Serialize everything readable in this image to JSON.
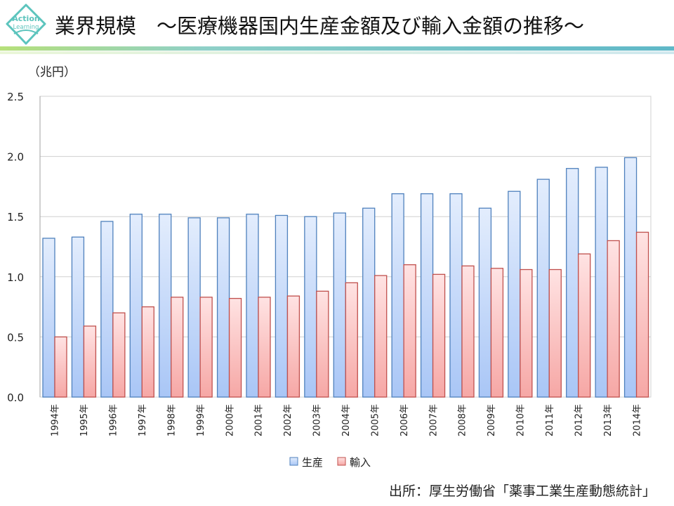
{
  "header": {
    "logo_text": [
      "Action",
      "Learning"
    ],
    "title": "業界規模　～医療機器国内生産金額及び輸入金額の推移～"
  },
  "colors": {
    "production": "#4f81bd",
    "import": "#c0504d",
    "accent": "#5fb8c8"
  },
  "chart_data": {
    "type": "bar",
    "title": "",
    "ylabel": "（兆円）",
    "xlabel": "",
    "ylim": [
      0,
      2.5
    ],
    "yticks": [
      "0.0",
      "0.5",
      "1.0",
      "1.5",
      "2.0",
      "2.5"
    ],
    "grid": true,
    "legend": "bottom",
    "categories": [
      "1994年",
      "1995年",
      "1996年",
      "1997年",
      "1998年",
      "1999年",
      "2000年",
      "2001年",
      "2002年",
      "2003年",
      "2004年",
      "2005年",
      "2006年",
      "2007年",
      "2008年",
      "2009年",
      "2010年",
      "2011年",
      "2012年",
      "2013年",
      "2014年"
    ],
    "series": [
      {
        "name": "生産",
        "values": [
          1.32,
          1.33,
          1.46,
          1.52,
          1.52,
          1.49,
          1.49,
          1.52,
          1.51,
          1.5,
          1.53,
          1.57,
          1.69,
          1.69,
          1.69,
          1.57,
          1.71,
          1.81,
          1.9,
          1.91,
          1.99
        ]
      },
      {
        "name": "輸入",
        "values": [
          0.5,
          0.59,
          0.7,
          0.75,
          0.83,
          0.83,
          0.82,
          0.83,
          0.84,
          0.88,
          0.95,
          1.01,
          1.1,
          1.02,
          1.09,
          1.07,
          1.06,
          1.06,
          1.19,
          1.3,
          1.37
        ]
      }
    ]
  },
  "source": "出所：厚生労働省「薬事工業生産動態統計」"
}
